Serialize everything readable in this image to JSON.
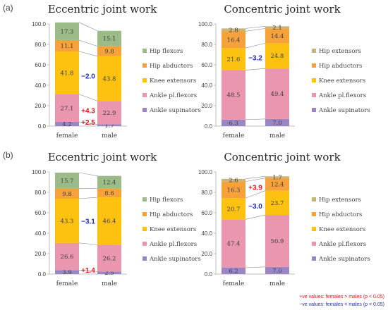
{
  "panel_labels": [
    "(a)",
    "(b)"
  ],
  "legend_eccentric": [
    "Hip flexors",
    "Hip abductors",
    "Knee extensors",
    "Ankle pl.flexors",
    "Ankle supinators"
  ],
  "legend_concentric": [
    "Hip extensors",
    "Hip abductors",
    "Knee extensors",
    "Ankle pl.flexors",
    "Ankle supinators"
  ],
  "colors": {
    "Hip flexors": "#9bbb88",
    "Hip extensors": "#c8b37a",
    "Hip abductors": "#f7a13a",
    "Knee extensors": "#fcc20f",
    "Ankle pl.flexors": "#e996ae",
    "Ankle supinators": "#9b86c4",
    "positive": "#e8141c",
    "negative": "#1c2cc4",
    "axis": "#bfbfbf",
    "text": "#404040"
  },
  "footnote": {
    "line1": "+ve values: females > males (p < 0.05)",
    "line2": "−ve values: females < males (p < 0.05)"
  },
  "chart_data": [
    {
      "type": "bar",
      "stacked": true,
      "title": "Eccentric joint work",
      "categories": [
        "female",
        "male"
      ],
      "ylim": [
        0,
        100
      ],
      "yticks": [
        "0.0",
        "20.0",
        "40.0",
        "60.0",
        "80.0",
        "100.0"
      ],
      "series": [
        {
          "name": "Ankle supinators",
          "values": [
            4.2,
            1.7
          ],
          "labels": [
            "4.2",
            "1.7"
          ]
        },
        {
          "name": "Ankle pl.flexors",
          "values": [
            27.1,
            22.9
          ],
          "labels": [
            "27.1",
            "22.9"
          ]
        },
        {
          "name": "Knee extensors",
          "values": [
            41.8,
            43.8
          ],
          "labels": [
            "41.8",
            "43.8"
          ]
        },
        {
          "name": "Hip abductors",
          "values": [
            11.1,
            9.8
          ],
          "labels": [
            "11.1",
            "9.8"
          ]
        },
        {
          "name": "Hip flexors",
          "values": [
            17.3,
            15.1
          ],
          "labels": [
            "17.3",
            "15.1"
          ]
        }
      ],
      "annotations": [
        {
          "text": "−2.0",
          "series": "Knee extensors",
          "sign": "negative"
        },
        {
          "text": "+4.3",
          "series": "Ankle pl.flexors",
          "sign": "positive"
        },
        {
          "text": "+2.5",
          "series": "Ankle supinators",
          "sign": "positive"
        }
      ]
    },
    {
      "type": "bar",
      "stacked": true,
      "title": "Concentric joint work",
      "categories": [
        "female",
        "male"
      ],
      "ylim": [
        0,
        100
      ],
      "yticks": [
        "0.0",
        "20.0",
        "40.0",
        "60.0",
        "80.0",
        "100.0"
      ],
      "series": [
        {
          "name": "Ankle supinators",
          "values": [
            6.3,
            7.0
          ],
          "labels": [
            "6.3",
            "7.0"
          ]
        },
        {
          "name": "Ankle pl.flexors",
          "values": [
            48.5,
            49.4
          ],
          "labels": [
            "48.5",
            "49.4"
          ]
        },
        {
          "name": "Knee extensors",
          "values": [
            21.6,
            24.8
          ],
          "labels": [
            "21.6",
            "24.8"
          ]
        },
        {
          "name": "Hip abductors",
          "values": [
            16.4,
            14.4
          ],
          "labels": [
            "16.4",
            "14.4"
          ]
        },
        {
          "name": "Hip extensors",
          "values": [
            2.8,
            2.1
          ],
          "labels": [
            "2.8",
            "2.1"
          ]
        }
      ],
      "annotations": [
        {
          "text": "−3.2",
          "series": "Knee extensors",
          "sign": "negative"
        }
      ]
    },
    {
      "type": "bar",
      "stacked": true,
      "title": "Eccentric joint work",
      "categories": [
        "female",
        "male"
      ],
      "ylim": [
        0,
        100
      ],
      "yticks": [
        "0.0",
        "20.0",
        "40.0",
        "60.0",
        "80.0",
        "100.0"
      ],
      "series": [
        {
          "name": "Ankle supinators",
          "values": [
            3.9,
            2.5
          ],
          "labels": [
            "3.9",
            "2.5"
          ]
        },
        {
          "name": "Ankle pl.flexors",
          "values": [
            26.6,
            26.2
          ],
          "labels": [
            "26.6",
            "26.2"
          ]
        },
        {
          "name": "Knee extensors",
          "values": [
            43.3,
            46.4
          ],
          "labels": [
            "43.3",
            "46.4"
          ]
        },
        {
          "name": "Hip abductors",
          "values": [
            9.8,
            8.6
          ],
          "labels": [
            "9.8",
            "8.6"
          ]
        },
        {
          "name": "Hip flexors",
          "values": [
            15.7,
            12.4
          ],
          "labels": [
            "15.7",
            "12.4"
          ]
        }
      ],
      "annotations": [
        {
          "text": "−3.1",
          "series": "Knee extensors",
          "sign": "negative"
        },
        {
          "text": "+1.4",
          "series": "Ankle supinators",
          "sign": "positive"
        }
      ]
    },
    {
      "type": "bar",
      "stacked": true,
      "title": "Concentric joint work",
      "categories": [
        "female",
        "male"
      ],
      "ylim": [
        0,
        100
      ],
      "yticks": [
        "0.0",
        "20.0",
        "40.0",
        "60.0",
        "80.0",
        "100.0"
      ],
      "series": [
        {
          "name": "Ankle supinators",
          "values": [
            6.2,
            7.0
          ],
          "labels": [
            "6.2",
            "7.0"
          ]
        },
        {
          "name": "Ankle pl.flexors",
          "values": [
            47.4,
            50.9
          ],
          "labels": [
            "47.4",
            "50.9"
          ]
        },
        {
          "name": "Knee extensors",
          "values": [
            20.7,
            23.7
          ],
          "labels": [
            "20.7",
            "23.7"
          ]
        },
        {
          "name": "Hip abductors",
          "values": [
            16.3,
            12.4
          ],
          "labels": [
            "16.3",
            "12.4"
          ]
        },
        {
          "name": "Hip extensors",
          "values": [
            2.6,
            1.7
          ],
          "labels": [
            "2.6",
            "1.7"
          ]
        }
      ],
      "annotations": [
        {
          "text": "+3.9",
          "series": "Hip abductors",
          "sign": "positive"
        },
        {
          "text": "−3.0",
          "series": "Knee extensors",
          "sign": "negative"
        }
      ]
    }
  ]
}
